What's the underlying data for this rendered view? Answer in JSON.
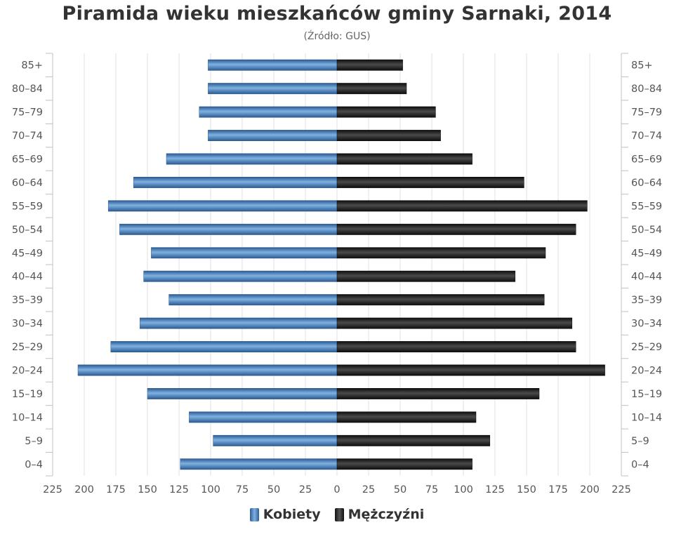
{
  "chart_data": {
    "type": "bar",
    "orientation": "horizontal-pyramid",
    "title": "Piramida wieku mieszkańców gminy Sarnaki, 2014",
    "subtitle": "(Źródło: GUS)",
    "categories": [
      "85+",
      "80–84",
      "75–79",
      "70–74",
      "65–69",
      "60–64",
      "55–59",
      "50–54",
      "45–49",
      "40–44",
      "35–39",
      "30–34",
      "25–29",
      "20–24",
      "15–19",
      "10–14",
      "5–9",
      "0–4"
    ],
    "series": [
      {
        "name": "Kobiety",
        "side": "left",
        "color": "#3a6fa8",
        "values": [
          102,
          102,
          109,
          102,
          135,
          161,
          181,
          172,
          147,
          153,
          133,
          156,
          179,
          205,
          150,
          117,
          98,
          124
        ]
      },
      {
        "name": "Mężczyźni",
        "side": "right",
        "color": "#1a1a1a",
        "values": [
          52,
          55,
          78,
          82,
          107,
          148,
          198,
          189,
          165,
          141,
          164,
          186,
          189,
          212,
          160,
          110,
          121,
          107
        ]
      }
    ],
    "xlim": [
      -225,
      225
    ],
    "xticks": [
      -225,
      -200,
      -175,
      -150,
      -125,
      -100,
      -75,
      -50,
      -25,
      0,
      25,
      50,
      75,
      100,
      125,
      150,
      175,
      200,
      225
    ],
    "xtick_labels": [
      "225",
      "200",
      "175",
      "150",
      "125",
      "100",
      "75",
      "50",
      "25",
      "0",
      "25",
      "50",
      "75",
      "100",
      "125",
      "150",
      "175",
      "200",
      "225"
    ],
    "grid": true,
    "legend_position": "bottom-center"
  }
}
